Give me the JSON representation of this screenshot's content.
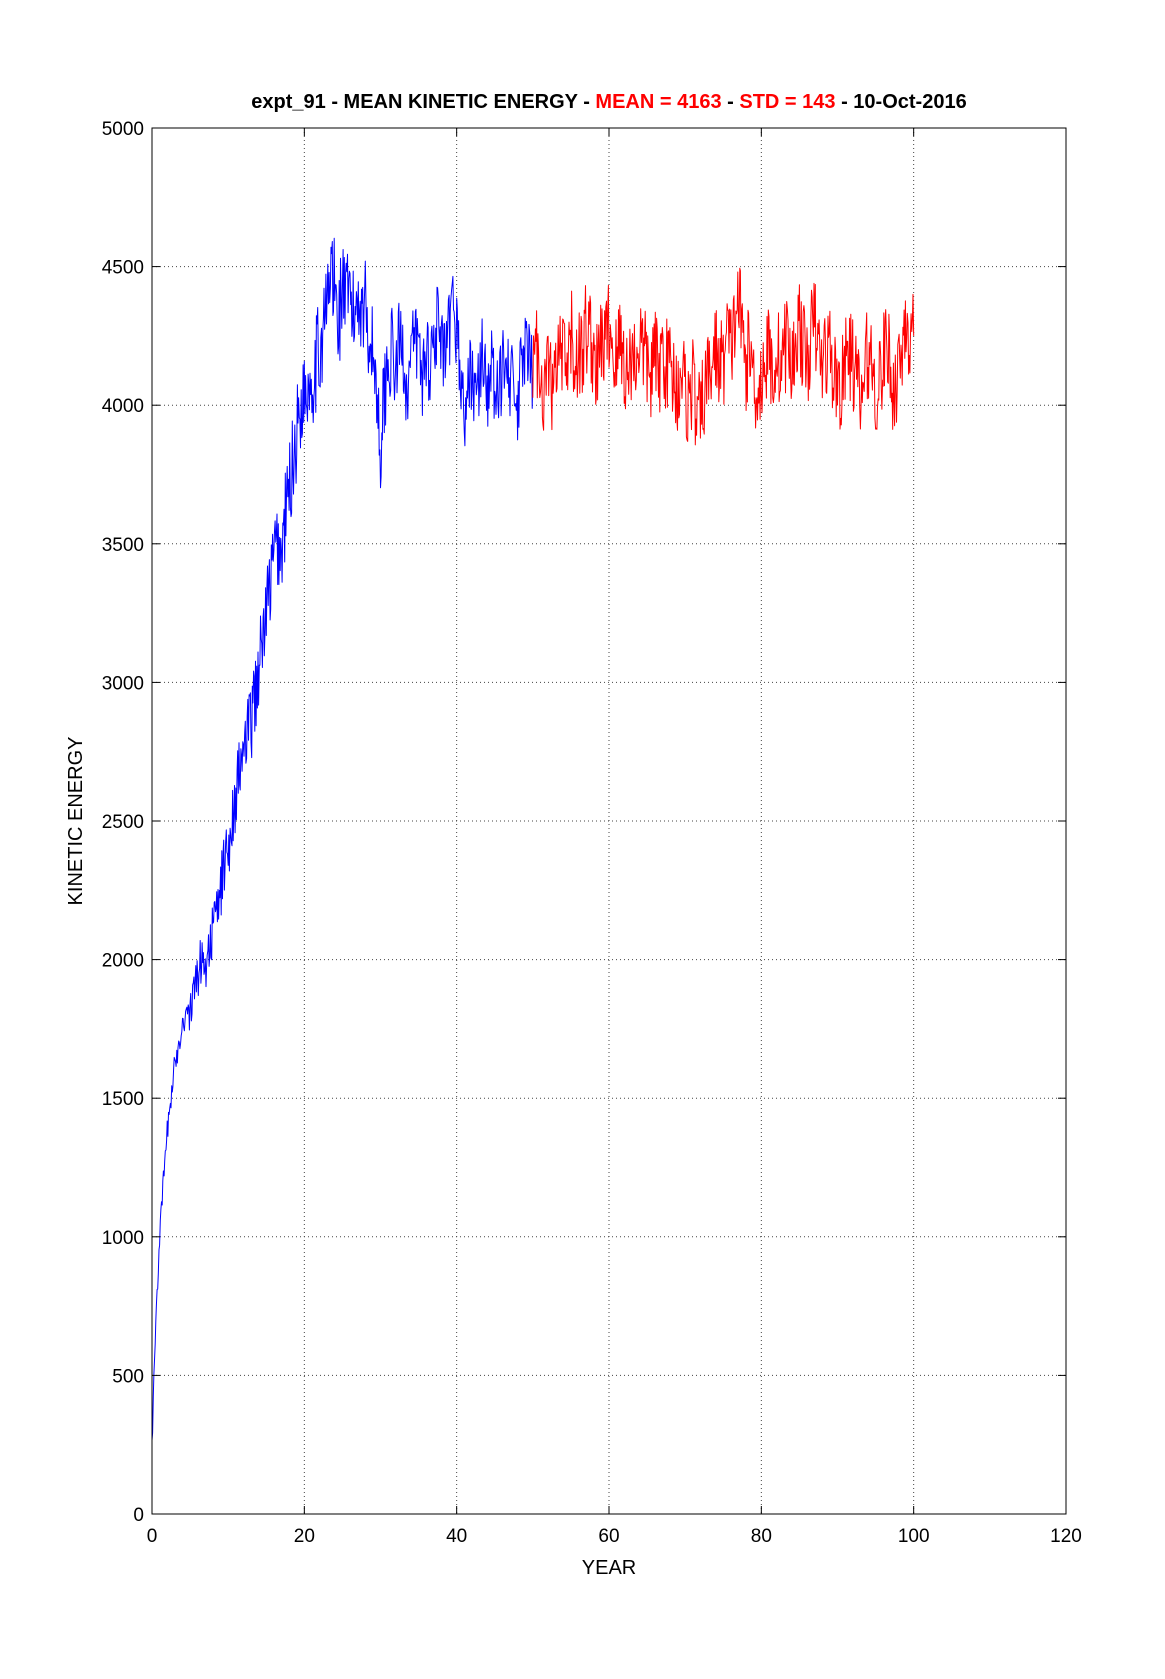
{
  "chart_data": {
    "type": "line",
    "title": {
      "prefix": "expt_91 - MEAN KINETIC ENERGY - ",
      "mean_text": "MEAN =  4163",
      "sep": " - ",
      "std_text": "STD =  143",
      "date_text": " - 10-Oct-2016"
    },
    "mean": 4163,
    "std": 143,
    "xlabel": "YEAR",
    "ylabel": "KINETIC ENERGY",
    "xlim": [
      0,
      120
    ],
    "ylim": [
      0,
      5000
    ],
    "xticks": [
      0,
      20,
      40,
      60,
      80,
      100,
      120
    ],
    "yticks": [
      0,
      500,
      1000,
      1500,
      2000,
      2500,
      3000,
      3500,
      4000,
      4500,
      5000
    ],
    "grid": true,
    "colors": {
      "spinup": "#0000ff",
      "analysis": "#ff0000",
      "highlight": "#ff0000",
      "text": "#000000"
    },
    "series": [
      {
        "color": "#0000ff",
        "x": [
          0,
          0.5,
          1,
          1.5,
          2,
          2.5,
          3,
          3.5,
          4,
          4.5,
          5,
          5.5,
          6,
          6.5,
          7,
          7.5,
          8,
          8.5,
          9,
          9.5,
          10,
          10.5,
          11,
          11.5,
          12,
          12.5,
          13,
          13.5,
          14,
          14.5,
          15,
          15.5,
          16,
          16.5,
          17,
          17.5,
          18,
          18.5,
          19,
          19.5,
          20,
          20.5,
          21,
          21.5,
          22,
          22.5,
          23,
          23.5,
          24,
          24.5,
          25,
          25.5,
          26,
          26.5,
          27,
          27.5,
          28,
          28.5,
          29,
          29.5,
          30,
          30.5,
          31,
          31.5,
          32,
          32.5,
          33,
          33.5,
          34,
          34.5,
          35,
          35.5,
          36,
          36.5,
          37,
          37.5,
          38,
          38.5,
          39,
          39.5,
          40,
          40.5,
          41,
          41.5,
          42,
          42.5,
          43,
          43.5,
          44,
          44.5,
          45,
          45.5,
          46,
          46.5,
          47,
          47.5,
          48,
          48.5,
          49,
          49.5,
          50
        ],
        "y": [
          250,
          700,
          1000,
          1200,
          1380,
          1500,
          1620,
          1700,
          1770,
          1820,
          1800,
          1880,
          1950,
          2000,
          1980,
          2050,
          2100,
          2180,
          2250,
          2350,
          2400,
          2500,
          2600,
          2680,
          2750,
          2800,
          2850,
          2950,
          3050,
          3150,
          3250,
          3350,
          3450,
          3500,
          3450,
          3600,
          3700,
          3800,
          3900,
          4000,
          4050,
          4080,
          4100,
          4150,
          4200,
          4280,
          4350,
          4500,
          4400,
          4300,
          4450,
          4350,
          4400,
          4300,
          4420,
          4350,
          4380,
          4250,
          4200,
          4050,
          3850,
          4050,
          4150,
          4200,
          4100,
          4250,
          4180,
          4050,
          4150,
          4250,
          4200,
          4100,
          4200,
          4150,
          4250,
          4300,
          4200,
          4150,
          4250,
          4350,
          4300,
          4100,
          3950,
          4050,
          4150,
          4000,
          4100,
          4200,
          4050,
          4150,
          4050,
          4000,
          4150,
          4250,
          4100,
          4050,
          3950,
          4150,
          4200,
          4150,
          4100
        ],
        "band": [
          30,
          60,
          40,
          40,
          40,
          40,
          50,
          50,
          60,
          60,
          70,
          80,
          90,
          90,
          90,
          90,
          100,
          100,
          110,
          110,
          120,
          120,
          130,
          130,
          140,
          140,
          140,
          150,
          150,
          150,
          160,
          160,
          160,
          170,
          170,
          170,
          170,
          180,
          180,
          180,
          180,
          180,
          180,
          180,
          190,
          190,
          200,
          220,
          200,
          200,
          180,
          180,
          180,
          170,
          170,
          170,
          160,
          160,
          160,
          160,
          170,
          160,
          150,
          150,
          150,
          150,
          150,
          150,
          150,
          150,
          150,
          150,
          150,
          150,
          150,
          150,
          150,
          150,
          150,
          150,
          160,
          150,
          150,
          150,
          150,
          150,
          150,
          150,
          150,
          150,
          150,
          150,
          150,
          150,
          150,
          150,
          160,
          150,
          150,
          150,
          150
        ]
      },
      {
        "color": "#ff0000",
        "x": [
          50,
          50.5,
          51,
          51.5,
          52,
          52.5,
          53,
          53.5,
          54,
          54.5,
          55,
          55.5,
          56,
          56.5,
          57,
          57.5,
          58,
          58.5,
          59,
          59.5,
          60,
          60.5,
          61,
          61.5,
          62,
          62.5,
          63,
          63.5,
          64,
          64.5,
          65,
          65.5,
          66,
          66.5,
          67,
          67.5,
          68,
          68.5,
          69,
          69.5,
          70,
          70.5,
          71,
          71.5,
          72,
          72.5,
          73,
          73.5,
          74,
          74.5,
          75,
          75.5,
          76,
          76.5,
          77,
          77.5,
          78,
          78.5,
          79,
          79.5,
          80,
          80.5,
          81,
          81.5,
          82,
          82.5,
          83,
          83.5,
          84,
          84.5,
          85,
          85.5,
          86,
          86.5,
          87,
          87.5,
          88,
          88.5,
          89,
          89.5,
          90,
          90.5,
          91,
          91.5,
          92,
          92.5,
          93,
          93.5,
          94,
          94.5,
          95,
          95.5,
          96,
          96.5,
          97,
          97.5,
          98,
          98.5,
          99,
          99.5,
          100
        ],
        "y": [
          4150,
          4200,
          4100,
          4050,
          4150,
          4050,
          4100,
          4200,
          4150,
          4100,
          4250,
          4150,
          4200,
          4150,
          4300,
          4250,
          4200,
          4100,
          4250,
          4200,
          4300,
          4200,
          4150,
          4250,
          4150,
          4100,
          4200,
          4150,
          4250,
          4200,
          4150,
          4100,
          4200,
          4100,
          4200,
          4150,
          4150,
          4100,
          4050,
          4150,
          4050,
          4000,
          4100,
          3950,
          3950,
          4050,
          4100,
          4150,
          4200,
          4150,
          4150,
          4250,
          4200,
          4300,
          4400,
          4250,
          4150,
          4200,
          4100,
          4050,
          4100,
          4150,
          4200,
          4100,
          4200,
          4150,
          4200,
          4250,
          4100,
          4250,
          4300,
          4200,
          4150,
          4250,
          4300,
          4200,
          4150,
          4200,
          4200,
          4100,
          4100,
          4050,
          4150,
          4200,
          4150,
          4100,
          4000,
          4100,
          4200,
          4150,
          4050,
          4100,
          4150,
          4250,
          4100,
          4050,
          4150,
          4200,
          4350,
          4200,
          4250
        ],
        "band": [
          160,
          160,
          160,
          160,
          160,
          160,
          170,
          170,
          170,
          180,
          180,
          180,
          180,
          190,
          190,
          180,
          180,
          180,
          180,
          180,
          180,
          180,
          180,
          180,
          180,
          170,
          170,
          170,
          170,
          170,
          170,
          170,
          170,
          170,
          170,
          170,
          170,
          170,
          170,
          170,
          170,
          170,
          170,
          170,
          170,
          170,
          170,
          170,
          170,
          170,
          170,
          170,
          170,
          170,
          180,
          170,
          170,
          170,
          170,
          170,
          170,
          170,
          170,
          170,
          170,
          170,
          170,
          180,
          170,
          180,
          170,
          170,
          170,
          170,
          170,
          170,
          170,
          170,
          170,
          170,
          170,
          170,
          170,
          170,
          170,
          170,
          170,
          170,
          170,
          170,
          170,
          170,
          170,
          170,
          170,
          170,
          170,
          180,
          180,
          170,
          170
        ]
      }
    ]
  }
}
